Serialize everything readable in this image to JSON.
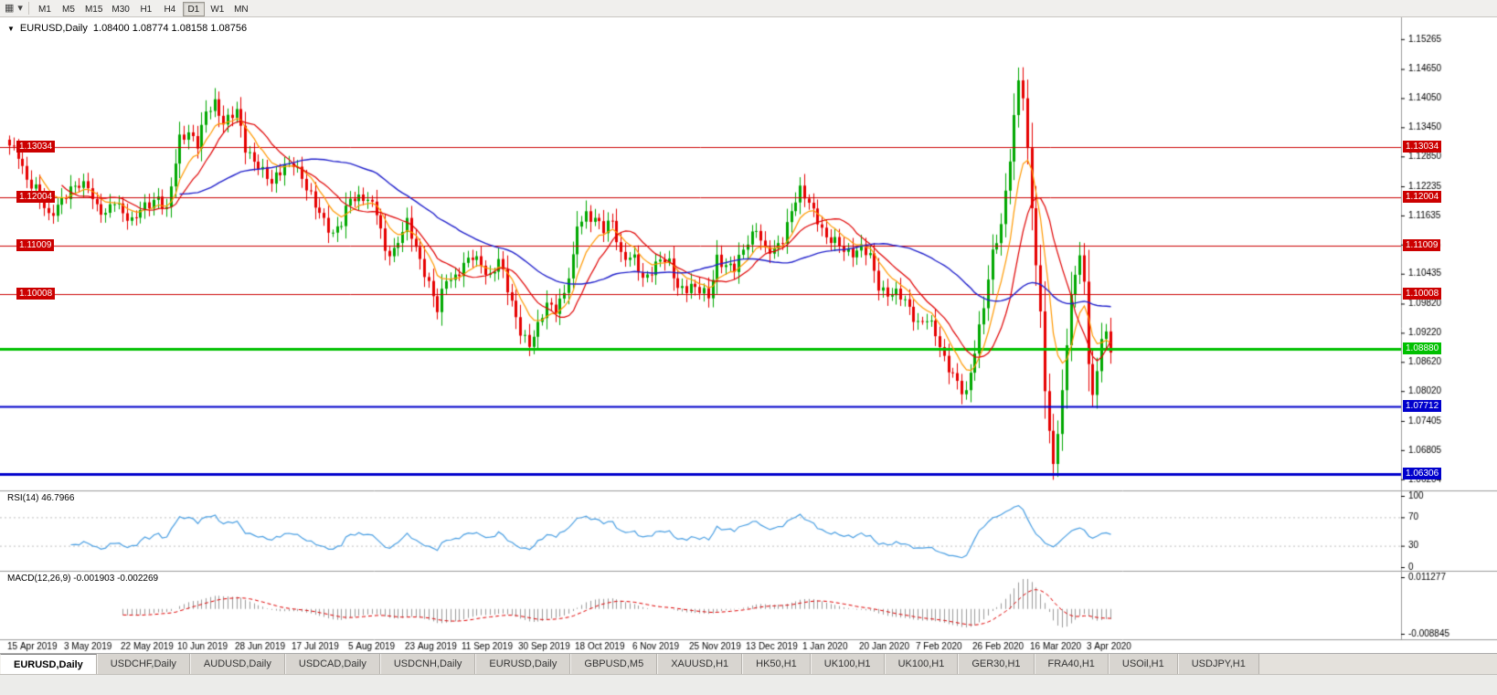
{
  "toolbar": {
    "chart_type_icon": "▦",
    "dropdown_icon": "▾",
    "timeframes": [
      {
        "label": "M1",
        "active": false
      },
      {
        "label": "M5",
        "active": false
      },
      {
        "label": "M15",
        "active": false
      },
      {
        "label": "M30",
        "active": false
      },
      {
        "label": "H1",
        "active": false
      },
      {
        "label": "H4",
        "active": false
      },
      {
        "label": "D1",
        "active": true
      },
      {
        "label": "W1",
        "active": false
      },
      {
        "label": "MN",
        "active": false
      }
    ]
  },
  "chart_header": {
    "marker": "▼",
    "symbol": "EURUSD,Daily",
    "ohlc": "1.08400 1.08774 1.08158 1.08756"
  },
  "indicators": {
    "rsi_label": "RSI(14) 46.7966",
    "macd_label": "MACD(12,26,9) -0.001903 -0.002269"
  },
  "tabs": [
    {
      "label": "EURUSD,Daily",
      "active": true
    },
    {
      "label": "USDCHF,Daily",
      "active": false
    },
    {
      "label": "AUDUSD,Daily",
      "active": false
    },
    {
      "label": "USDCAD,Daily",
      "active": false
    },
    {
      "label": "USDCNH,Daily",
      "active": false
    },
    {
      "label": "EURUSD,Daily",
      "active": false
    },
    {
      "label": "GBPUSD,M5",
      "active": false
    },
    {
      "label": "XAUUSD,H1",
      "active": false
    },
    {
      "label": "HK50,H1",
      "active": false
    },
    {
      "label": "UK100,H1",
      "active": false
    },
    {
      "label": "UK100,H1",
      "active": false
    },
    {
      "label": "GER30,H1",
      "active": false
    },
    {
      "label": "FRA40,H1",
      "active": false
    },
    {
      "label": "USOil,H1",
      "active": false
    },
    {
      "label": "USDJPY,H1",
      "active": false
    }
  ],
  "chart_data": {
    "type": "candlestick",
    "symbol": "EURUSD",
    "timeframe": "Daily",
    "ohlc_display": {
      "open": 1.084,
      "high": 1.08774,
      "low": 1.08158,
      "close": 1.08756
    },
    "candle_count": 253,
    "price_range": [
      1.0605,
      1.156
    ],
    "price_axis_ticks": [
      "1.15265",
      "1.14650",
      "1.14050",
      "1.13450",
      "1.12850",
      "1.12235",
      "1.11635",
      "1.11035",
      "1.10435",
      "1.09820",
      "1.09220",
      "1.08620",
      "1.08020",
      "1.07405",
      "1.06805",
      "1.06204"
    ],
    "date_labels": [
      "15 Apr 2019",
      "3 May 2019",
      "22 May 2019",
      "10 Jun 2019",
      "28 Jun 2019",
      "17 Jul 2019",
      "5 Aug 2019",
      "23 Aug 2019",
      "11 Sep 2019",
      "30 Sep 2019",
      "18 Oct 2019",
      "6 Nov 2019",
      "25 Nov 2019",
      "13 Dec 2019",
      "1 Jan 2020",
      "20 Jan 2020",
      "7 Feb 2020",
      "26 Feb 2020",
      "16 Mar 2020",
      "3 Apr 2020"
    ],
    "label_every_n_candles": 13,
    "horizontal_lines": [
      {
        "value": "1.13034",
        "price": 1.13034,
        "color": "#cc0000",
        "width": 1,
        "left_tag": true
      },
      {
        "value": "1.12004",
        "price": 1.12004,
        "color": "#cc0000",
        "width": 1,
        "left_tag": true
      },
      {
        "value": "1.11009",
        "price": 1.11009,
        "color": "#cc0000",
        "width": 1,
        "left_tag": true
      },
      {
        "value": "1.10008",
        "price": 1.10008,
        "color": "#cc0000",
        "width": 1,
        "left_tag": true
      },
      {
        "value": "1.08880",
        "price": 1.0888,
        "color": "#00c000",
        "width": 3,
        "left_tag": false
      },
      {
        "value": "1.07712",
        "price": 1.07712,
        "color": "#0000cc",
        "width": 2,
        "left_tag": false
      },
      {
        "value": "1.06306",
        "price": 1.06306,
        "color": "#0000cc",
        "width": 3,
        "left_tag": false
      }
    ],
    "moving_averages": [
      {
        "period": 8,
        "method": "ema",
        "color": "#ff9900"
      },
      {
        "period": 13,
        "method": "sma",
        "color": "#e00000"
      },
      {
        "period": 40,
        "method": "sma",
        "color": "#2222cc"
      }
    ],
    "rsi": {
      "period": 14,
      "current": 46.7966,
      "axis_levels": [
        "100",
        "70",
        "30",
        "0"
      ],
      "level_lines": [
        70,
        30
      ],
      "color": "#4a9fe3"
    },
    "macd": {
      "fast": 12,
      "slow": 26,
      "signal": 9,
      "main": -0.001903,
      "signal_value": -0.002269,
      "axis_max": "0.011277",
      "axis_min": "-0.008845",
      "hist_color": "#9a9a9a",
      "signal_color": "#e00000"
    },
    "colors": {
      "bull": "#00a800",
      "bear": "#e60000",
      "axis_text": "#000000",
      "separator": "#9b9b9b",
      "level_dots": "#c0c0c0"
    },
    "close_path": [
      [
        0,
        1.1302
      ],
      [
        2,
        1.1292
      ],
      [
        4,
        1.124
      ],
      [
        6,
        1.1215
      ],
      [
        9,
        1.116
      ],
      [
        11,
        1.119
      ],
      [
        13,
        1.1205
      ],
      [
        16,
        1.1225
      ],
      [
        18,
        1.123
      ],
      [
        20,
        1.118
      ],
      [
        22,
        1.116
      ],
      [
        24,
        1.1195
      ],
      [
        26,
        1.1175
      ],
      [
        28,
        1.115
      ],
      [
        31,
        1.118
      ],
      [
        34,
        1.1205
      ],
      [
        36,
        1.117
      ],
      [
        39,
        1.132
      ],
      [
        41,
        1.134
      ],
      [
        43,
        1.131
      ],
      [
        45,
        1.137
      ],
      [
        47,
        1.1395
      ],
      [
        49,
        1.136
      ],
      [
        52,
        1.1375
      ],
      [
        54,
        1.13
      ],
      [
        57,
        1.127
      ],
      [
        60,
        1.1225
      ],
      [
        63,
        1.127
      ],
      [
        65,
        1.1275
      ],
      [
        68,
        1.1215
      ],
      [
        71,
        1.1175
      ],
      [
        74,
        1.112
      ],
      [
        76,
        1.1145
      ],
      [
        78,
        1.1205
      ],
      [
        81,
        1.12
      ],
      [
        84,
        1.117
      ],
      [
        86,
        1.1095
      ],
      [
        88,
        1.109
      ],
      [
        91,
        1.1145
      ],
      [
        93,
        1.11
      ],
      [
        95,
        1.105
      ],
      [
        98,
        1.0965
      ],
      [
        100,
        1.1035
      ],
      [
        102,
        1.104
      ],
      [
        104,
        1.106
      ],
      [
        106,
        1.1075
      ],
      [
        108,
        1.1065
      ],
      [
        110,
        1.104
      ],
      [
        112,
        1.107
      ],
      [
        114,
        1.101
      ],
      [
        117,
        1.093
      ],
      [
        119,
        1.0895
      ],
      [
        121,
        1.093
      ],
      [
        123,
        1.0985
      ],
      [
        125,
        1.0975
      ],
      [
        127,
        1.1
      ],
      [
        129,
        1.107
      ],
      [
        130,
        1.1145
      ],
      [
        132,
        1.117
      ],
      [
        134,
        1.1155
      ],
      [
        136,
        1.113
      ],
      [
        138,
        1.1155
      ],
      [
        140,
        1.1085
      ],
      [
        143,
        1.107
      ],
      [
        145,
        1.103
      ],
      [
        147,
        1.1055
      ],
      [
        149,
        1.1075
      ],
      [
        151,
        1.106
      ],
      [
        153,
        1.1015
      ],
      [
        156,
        1.102
      ],
      [
        158,
        1.1005
      ],
      [
        160,
        1.0995
      ],
      [
        162,
        1.108
      ],
      [
        164,
        1.106
      ],
      [
        166,
        1.105
      ],
      [
        169,
        1.1115
      ],
      [
        171,
        1.114
      ],
      [
        173,
        1.1085
      ],
      [
        175,
        1.109
      ],
      [
        177,
        1.112
      ],
      [
        179,
        1.1175
      ],
      [
        181,
        1.121
      ],
      [
        183,
        1.119
      ],
      [
        185,
        1.116
      ],
      [
        187,
        1.1115
      ],
      [
        189,
        1.1105
      ],
      [
        191,
        1.1095
      ],
      [
        193,
        1.109
      ],
      [
        195,
        1.1095
      ],
      [
        197,
        1.1075
      ],
      [
        199,
        1.102
      ],
      [
        201,
        1.1005
      ],
      [
        203,
        1.1
      ],
      [
        205,
        1.0985
      ],
      [
        208,
        1.0945
      ],
      [
        210,
        1.095
      ],
      [
        212,
        1.0915
      ],
      [
        214,
        1.087
      ],
      [
        216,
        1.084
      ],
      [
        218,
        1.08
      ],
      [
        219,
        1.079
      ],
      [
        221,
        1.0885
      ],
      [
        223,
        1.0985
      ],
      [
        225,
        1.1085
      ],
      [
        227,
        1.1135
      ],
      [
        229,
        1.1285
      ],
      [
        231,
        1.145
      ],
      [
        232,
        1.141
      ],
      [
        233,
        1.129
      ],
      [
        234,
        1.118
      ],
      [
        235,
        1.1055
      ],
      [
        236,
        1.096
      ],
      [
        237,
        1.0815
      ],
      [
        238,
        1.072
      ],
      [
        239,
        1.0655
      ],
      [
        240,
        1.072
      ],
      [
        241,
        1.079
      ],
      [
        242,
        1.0895
      ],
      [
        243,
        1.1
      ],
      [
        244,
        1.1035
      ],
      [
        245,
        1.1095
      ],
      [
        246,
        1.103
      ],
      [
        247,
        1.0855
      ],
      [
        248,
        1.08
      ],
      [
        249,
        1.083
      ],
      [
        250,
        1.0905
      ],
      [
        251,
        1.093
      ],
      [
        252,
        1.0876
      ]
    ]
  }
}
